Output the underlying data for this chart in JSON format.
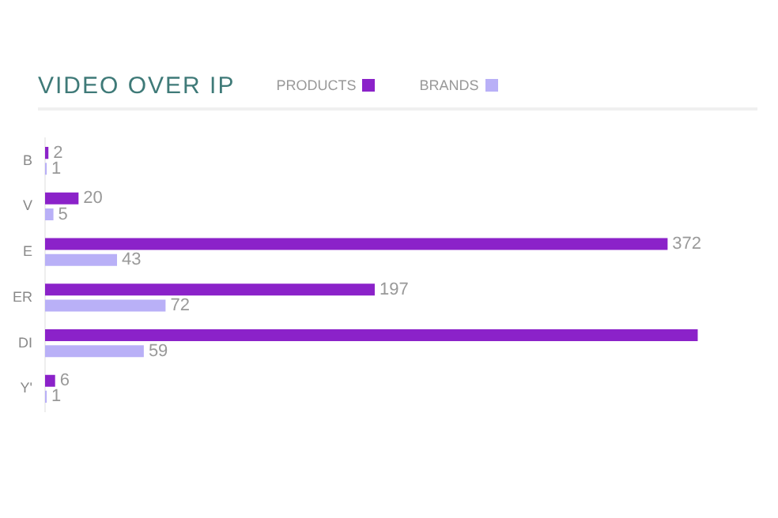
{
  "chart_data": {
    "type": "bar",
    "orientation": "horizontal",
    "title": "VIDEO OVER IP",
    "legend": "top",
    "grid": false,
    "categories": [
      "B",
      "V",
      "E",
      "ER",
      "DI",
      "Y'"
    ],
    "series": [
      {
        "name": "PRODUCTS",
        "color": "#8b22c9",
        "values": [
          2,
          20,
          372,
          197,
          390,
          6
        ],
        "value_labels": [
          "2",
          "20",
          "372",
          "197",
          null,
          "6"
        ]
      },
      {
        "name": "BRANDS",
        "color": "#b9b0f7",
        "values": [
          1,
          5,
          43,
          72,
          59,
          1
        ],
        "value_labels": [
          "1",
          "5",
          "43",
          "72",
          "59",
          "1"
        ]
      }
    ]
  }
}
